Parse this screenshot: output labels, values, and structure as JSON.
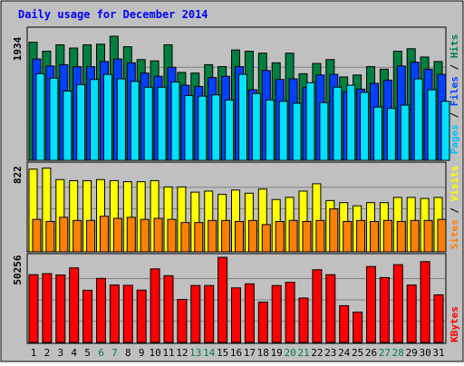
{
  "title": "Daily usage for December 2014",
  "chart_data": [
    {
      "type": "bar",
      "panel": "pages-files-hits",
      "y_max_label": "1934",
      "legend_parts": [
        "Pages",
        "Files",
        "Hits"
      ],
      "categories": [
        "1",
        "2",
        "3",
        "4",
        "5",
        "6",
        "7",
        "8",
        "9",
        "10",
        "11",
        "12",
        "13",
        "14",
        "15",
        "16",
        "17",
        "18",
        "19",
        "20",
        "21",
        "22",
        "23",
        "24",
        "25",
        "26",
        "27",
        "28",
        "29",
        "30",
        "31"
      ],
      "weekend_days": [
        "6",
        "7",
        "13",
        "14",
        "20",
        "21",
        "27",
        "28"
      ],
      "ylim": [
        0,
        1934
      ],
      "series": [
        {
          "name": "Hits",
          "color": "#008040",
          "values": [
            1840,
            1700,
            1800,
            1750,
            1800,
            1810,
            1934,
            1770,
            1570,
            1550,
            1800,
            1370,
            1360,
            1490,
            1460,
            1720,
            1700,
            1670,
            1520,
            1670,
            1350,
            1510,
            1570,
            1300,
            1330,
            1460,
            1420,
            1700,
            1740,
            1610,
            1540
          ]
        },
        {
          "name": "Files",
          "color": "#0040ff",
          "values": [
            1580,
            1470,
            1490,
            1460,
            1460,
            1540,
            1580,
            1520,
            1360,
            1310,
            1450,
            1170,
            1150,
            1290,
            1310,
            1460,
            1100,
            1400,
            1260,
            1270,
            1140,
            1330,
            1340,
            1070,
            1110,
            1200,
            1250,
            1470,
            1530,
            1420,
            1340
          ]
        },
        {
          "name": "Pages",
          "color": "#00e0ff",
          "values": [
            1350,
            1280,
            1080,
            1180,
            1260,
            1340,
            1270,
            1230,
            1140,
            1140,
            1220,
            1010,
            1000,
            1020,
            940,
            1340,
            1040,
            940,
            920,
            890,
            1210,
            900,
            1140,
            1170,
            1060,
            830,
            810,
            860,
            1270,
            1100,
            920
          ]
        }
      ]
    },
    {
      "type": "bar",
      "panel": "sites-visits",
      "y_max_label": "822",
      "legend_parts": [
        "Sites",
        "Visits"
      ],
      "categories": [
        "1",
        "2",
        "3",
        "4",
        "5",
        "6",
        "7",
        "8",
        "9",
        "10",
        "11",
        "12",
        "13",
        "14",
        "15",
        "16",
        "17",
        "18",
        "19",
        "20",
        "21",
        "22",
        "23",
        "24",
        "25",
        "26",
        "27",
        "28",
        "29",
        "30",
        "31"
      ],
      "ylim": [
        0,
        822
      ],
      "series": [
        {
          "name": "Visits",
          "color": "#ffff00",
          "values": [
            790,
            800,
            690,
            680,
            680,
            690,
            680,
            670,
            670,
            680,
            620,
            620,
            570,
            580,
            550,
            590,
            560,
            600,
            500,
            520,
            580,
            650,
            490,
            470,
            440,
            470,
            470,
            520,
            520,
            510,
            520
          ]
        },
        {
          "name": "Sites",
          "color": "#ff8000",
          "values": [
            310,
            290,
            330,
            300,
            300,
            340,
            320,
            330,
            310,
            320,
            310,
            280,
            280,
            300,
            300,
            290,
            300,
            260,
            290,
            300,
            290,
            300,
            410,
            290,
            300,
            290,
            300,
            290,
            300,
            300,
            310
          ]
        }
      ]
    },
    {
      "type": "bar",
      "panel": "kbytes",
      "y_max_label": "50256",
      "legend_parts": [
        "KBytes"
      ],
      "categories": [
        "1",
        "2",
        "3",
        "4",
        "5",
        "6",
        "7",
        "8",
        "9",
        "10",
        "11",
        "12",
        "13",
        "14",
        "15",
        "16",
        "17",
        "18",
        "19",
        "20",
        "21",
        "22",
        "23",
        "24",
        "25",
        "26",
        "27",
        "28",
        "29",
        "30",
        "31"
      ],
      "ylim": [
        0,
        50256
      ],
      "series": [
        {
          "name": "KBytes",
          "color": "#ff0000",
          "values": [
            40000,
            40600,
            39800,
            44000,
            30800,
            37800,
            33900,
            33700,
            30900,
            43400,
            39400,
            25400,
            33600,
            33600,
            50256,
            32200,
            34600,
            23800,
            33600,
            35500,
            26200,
            42900,
            40000,
            21700,
            17900,
            44800,
            38300,
            45900,
            33900,
            47700,
            28100
          ]
        }
      ]
    }
  ]
}
